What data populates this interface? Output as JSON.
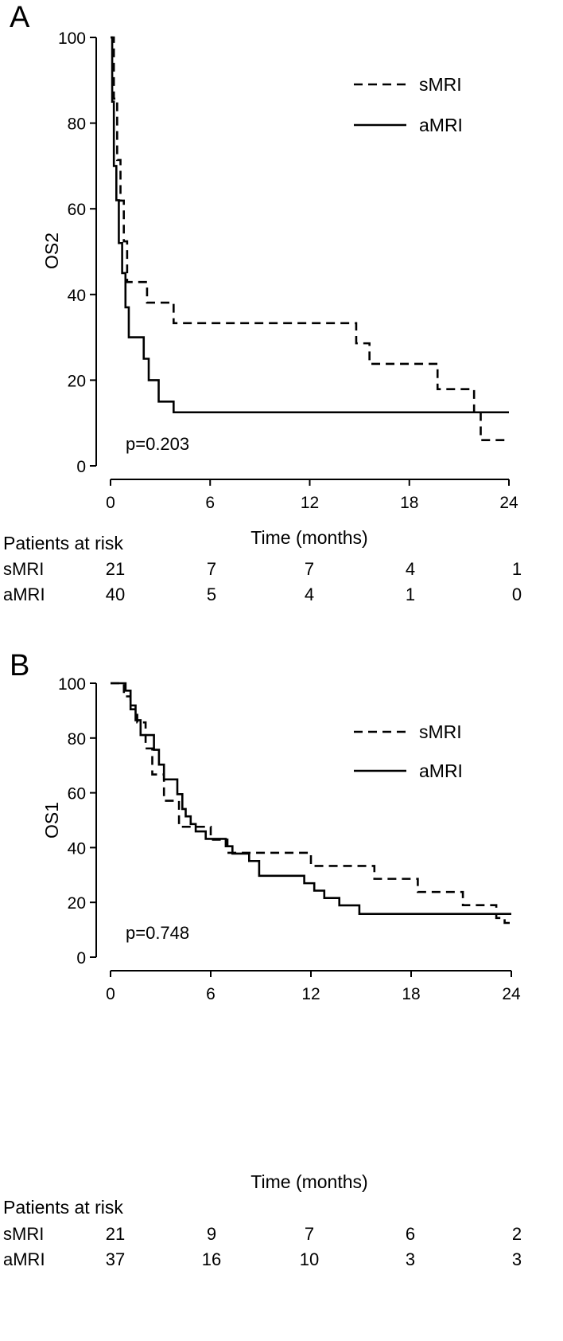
{
  "chart_data": [
    {
      "type": "line",
      "panel_label": "A",
      "ylabel": "OS2",
      "xlabel": "Time (months)",
      "xlim": [
        0,
        24
      ],
      "ylim": [
        0,
        100
      ],
      "xticks": [
        0,
        6,
        12,
        18,
        24
      ],
      "yticks": [
        0,
        20,
        40,
        60,
        80,
        100
      ],
      "annotation": "p=0.203",
      "legend": {
        "position": "top-right",
        "entries": [
          "sMRI",
          "aMRI"
        ]
      },
      "series": [
        {
          "name": "sMRI",
          "style": "dashed",
          "step": true,
          "x": [
            0,
            0.2,
            0.4,
            0.6,
            0.8,
            1.0,
            2.2,
            3.8,
            14.8,
            15.6,
            19.7,
            21.9,
            22.3,
            24
          ],
          "y": [
            100,
            85.7,
            71.4,
            61.9,
            52.4,
            42.9,
            38.1,
            33.3,
            28.6,
            23.8,
            17.9,
            12.5,
            6.0,
            6.0
          ]
        },
        {
          "name": "aMRI",
          "style": "solid",
          "step": true,
          "x": [
            0,
            0.1,
            0.2,
            0.35,
            0.5,
            0.7,
            0.9,
            1.1,
            1.3,
            2.0,
            2.3,
            2.9,
            3.8,
            24
          ],
          "y": [
            100,
            85,
            70,
            62,
            52,
            45,
            37,
            30,
            30,
            25,
            20,
            15,
            12.5,
            12.5
          ]
        }
      ],
      "risk_table": {
        "title": "Patients at risk",
        "times": [
          0,
          6,
          12,
          18,
          24
        ],
        "rows": [
          {
            "label": "sMRI",
            "values": [
              "21",
              "7",
              "7",
              "4",
              "1"
            ]
          },
          {
            "label": "aMRI",
            "values": [
              "40",
              "5",
              "4",
              "1",
              "0"
            ]
          }
        ]
      }
    },
    {
      "type": "line",
      "panel_label": "B",
      "ylabel": "OS1",
      "xlabel": "Time (months)",
      "xlim": [
        0,
        24
      ],
      "ylim": [
        0,
        100
      ],
      "xticks": [
        0,
        6,
        12,
        18,
        24
      ],
      "yticks": [
        0,
        20,
        40,
        60,
        80,
        100
      ],
      "annotation": "p=0.748",
      "legend": {
        "position": "top-right",
        "entries": [
          "sMRI",
          "aMRI"
        ]
      },
      "series": [
        {
          "name": "sMRI",
          "style": "dashed",
          "step": true,
          "x": [
            0,
            0.8,
            1.2,
            1.6,
            2.1,
            2.5,
            3.2,
            4.1,
            6.0,
            7.0,
            7.6,
            12.0,
            15.8,
            18.4,
            21.1,
            23.1,
            23.6,
            24
          ],
          "y": [
            100,
            95.2,
            90.5,
            85.7,
            76.2,
            66.7,
            57.1,
            47.6,
            42.9,
            38.1,
            38.1,
            33.3,
            28.6,
            23.8,
            19.0,
            14.3,
            12.5,
            12.5
          ]
        },
        {
          "name": "aMRI",
          "style": "solid",
          "step": true,
          "x": [
            0,
            0.9,
            1.2,
            1.5,
            1.8,
            2.1,
            2.6,
            2.9,
            3.2,
            3.6,
            4.0,
            4.3,
            4.5,
            4.8,
            5.1,
            5.7,
            6.9,
            7.3,
            8.3,
            8.9,
            11.6,
            12.2,
            12.8,
            13.7,
            14.9,
            24
          ],
          "y": [
            100,
            97.3,
            91.9,
            86.5,
            81.1,
            81.1,
            75.7,
            70.3,
            64.9,
            64.9,
            59.5,
            54.1,
            51.4,
            48.6,
            45.9,
            43.2,
            40.5,
            37.8,
            35.1,
            29.7,
            27.0,
            24.3,
            21.6,
            18.9,
            15.8,
            15.8
          ]
        }
      ],
      "risk_table": {
        "title": "Patients at risk",
        "times": [
          0,
          6,
          12,
          18,
          24
        ],
        "rows": [
          {
            "label": "sMRI",
            "values": [
              "21",
              "9",
              "7",
              "6",
              "2"
            ]
          },
          {
            "label": "aMRI",
            "values": [
              "37",
              "16",
              "10",
              "3",
              "3"
            ]
          }
        ]
      }
    }
  ]
}
